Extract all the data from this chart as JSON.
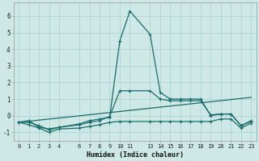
{
  "xlabel": "Humidex (Indice chaleur)",
  "x_ticks": [
    0,
    1,
    2,
    3,
    4,
    6,
    7,
    8,
    9,
    10,
    11,
    13,
    14,
    15,
    16,
    17,
    18,
    19,
    20,
    21,
    22,
    23
  ],
  "background_color": "#cde8e5",
  "grid_color": "#afd4d0",
  "line_color": "#1a6b6b",
  "ylim": [
    -1.5,
    6.8
  ],
  "xlim": [
    -0.5,
    23.5
  ],
  "yticks": [
    -1,
    0,
    1,
    2,
    3,
    4,
    5,
    6
  ],
  "series": [
    {
      "x": [
        0,
        1,
        2,
        3,
        4,
        6,
        7,
        8,
        9,
        10,
        11,
        13,
        14,
        15,
        16,
        17,
        18,
        19,
        20,
        21,
        22,
        23
      ],
      "y": [
        -0.4,
        -0.3,
        -0.7,
        -0.8,
        -0.7,
        -0.5,
        -0.3,
        -0.2,
        -0.1,
        4.5,
        6.3,
        4.9,
        1.4,
        1.0,
        1.0,
        1.0,
        1.0,
        0.0,
        0.1,
        0.1,
        -0.6,
        -0.3
      ],
      "marker": true
    },
    {
      "x": [
        0,
        1,
        2,
        3,
        4,
        6,
        7,
        8,
        9,
        10,
        11,
        13,
        14,
        15,
        16,
        17,
        18,
        19,
        20,
        21,
        22,
        23
      ],
      "y": [
        -0.4,
        -0.55,
        -0.75,
        -1.0,
        -0.8,
        -0.75,
        -0.65,
        -0.55,
        -0.4,
        -0.35,
        -0.35,
        -0.35,
        -0.35,
        -0.35,
        -0.35,
        -0.35,
        -0.35,
        -0.35,
        -0.2,
        -0.2,
        -0.75,
        -0.45
      ],
      "marker": true
    },
    {
      "x": [
        0,
        23
      ],
      "y": [
        -0.4,
        1.1
      ],
      "marker": false
    },
    {
      "x": [
        0,
        1,
        2,
        3,
        4,
        6,
        7,
        8,
        9,
        10,
        11,
        13,
        14,
        15,
        16,
        17,
        18,
        19,
        20,
        21,
        22,
        23
      ],
      "y": [
        -0.4,
        -0.4,
        -0.6,
        -0.85,
        -0.7,
        -0.55,
        -0.4,
        -0.3,
        -0.05,
        1.5,
        1.5,
        1.5,
        1.0,
        0.9,
        0.9,
        0.9,
        0.9,
        0.05,
        0.1,
        0.1,
        -0.6,
        -0.35
      ],
      "marker": true
    }
  ]
}
